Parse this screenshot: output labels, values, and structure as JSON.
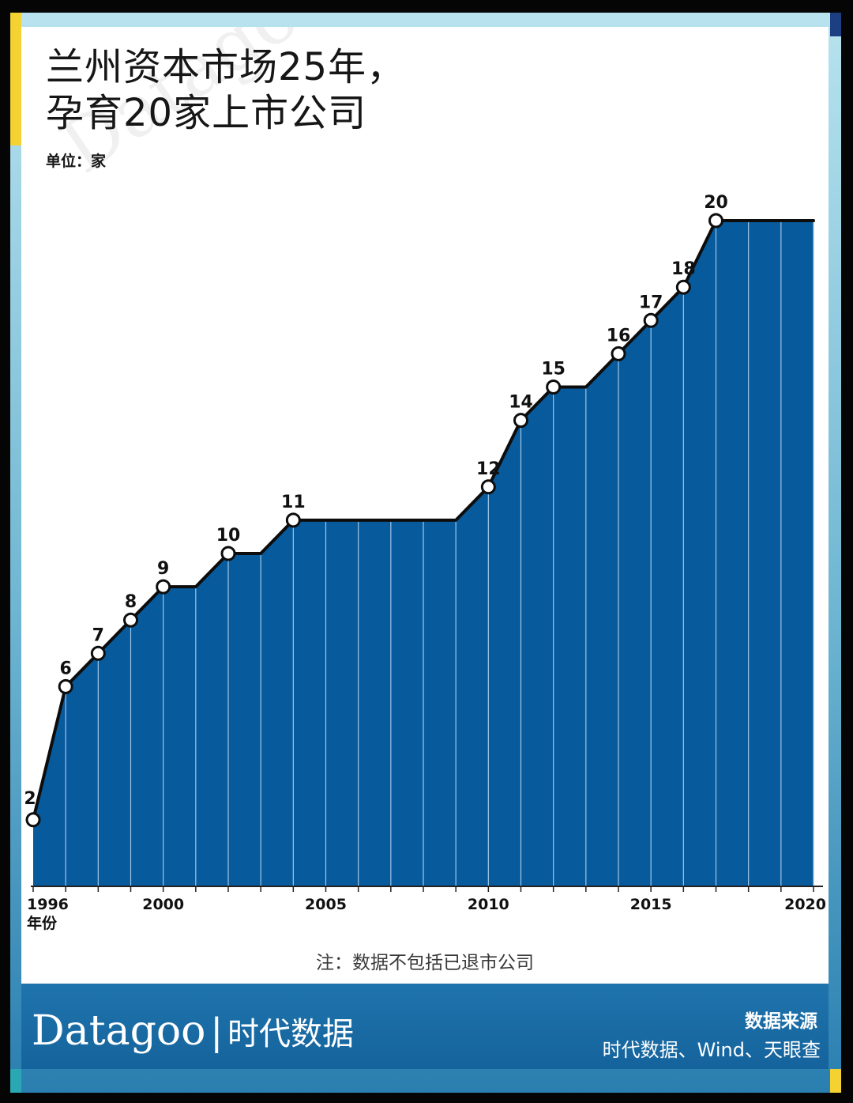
{
  "chart_data": {
    "type": "area",
    "title": "兰州资本市场25年，\n孕育20家上市公司",
    "unit": "单位：家",
    "xlabel": "年份",
    "x": [
      1996,
      1997,
      1998,
      1999,
      2000,
      2001,
      2002,
      2003,
      2004,
      2005,
      2006,
      2007,
      2008,
      2009,
      2010,
      2011,
      2012,
      2013,
      2014,
      2015,
      2016,
      2017,
      2018,
      2019,
      2020
    ],
    "values": [
      2,
      6,
      7,
      8,
      9,
      9,
      10,
      10,
      11,
      11,
      11,
      11,
      11,
      11,
      12,
      14,
      15,
      15,
      16,
      17,
      18,
      20,
      20,
      20,
      20
    ],
    "labeled_points": [
      {
        "x": 1996,
        "y": 2,
        "label": "2"
      },
      {
        "x": 1997,
        "y": 6,
        "label": "6"
      },
      {
        "x": 1998,
        "y": 7,
        "label": "7"
      },
      {
        "x": 1999,
        "y": 8,
        "label": "8"
      },
      {
        "x": 2000,
        "y": 9,
        "label": "9"
      },
      {
        "x": 2002,
        "y": 10,
        "label": "10"
      },
      {
        "x": 2004,
        "y": 11,
        "label": "11"
      },
      {
        "x": 2010,
        "y": 12,
        "label": "12"
      },
      {
        "x": 2011,
        "y": 14,
        "label": "14"
      },
      {
        "x": 2012,
        "y": 15,
        "label": "15"
      },
      {
        "x": 2014,
        "y": 16,
        "label": "16"
      },
      {
        "x": 2015,
        "y": 17,
        "label": "17"
      },
      {
        "x": 2016,
        "y": 18,
        "label": "18"
      },
      {
        "x": 2017,
        "y": 20,
        "label": "20"
      }
    ],
    "x_ticks": [
      "1996",
      "2000",
      "2005",
      "2010",
      "2015",
      "2020"
    ],
    "xlim": [
      1996,
      2020
    ],
    "ylim": [
      0,
      20
    ],
    "grid": false,
    "note": "注：数据不包括已退市公司",
    "colors": {
      "area": "#075a9c",
      "line": "#0d0d0d",
      "marker_fill": "#ffffff",
      "divider": "#9fc8e8"
    }
  },
  "watermark": "Datagoo|时代数据",
  "footer": {
    "brand_latin": "Datagoo",
    "brand_sep": "|",
    "brand_cn": "时代数据",
    "source_label": "数据来源",
    "source_text": "时代数据、Wind、天眼查"
  }
}
